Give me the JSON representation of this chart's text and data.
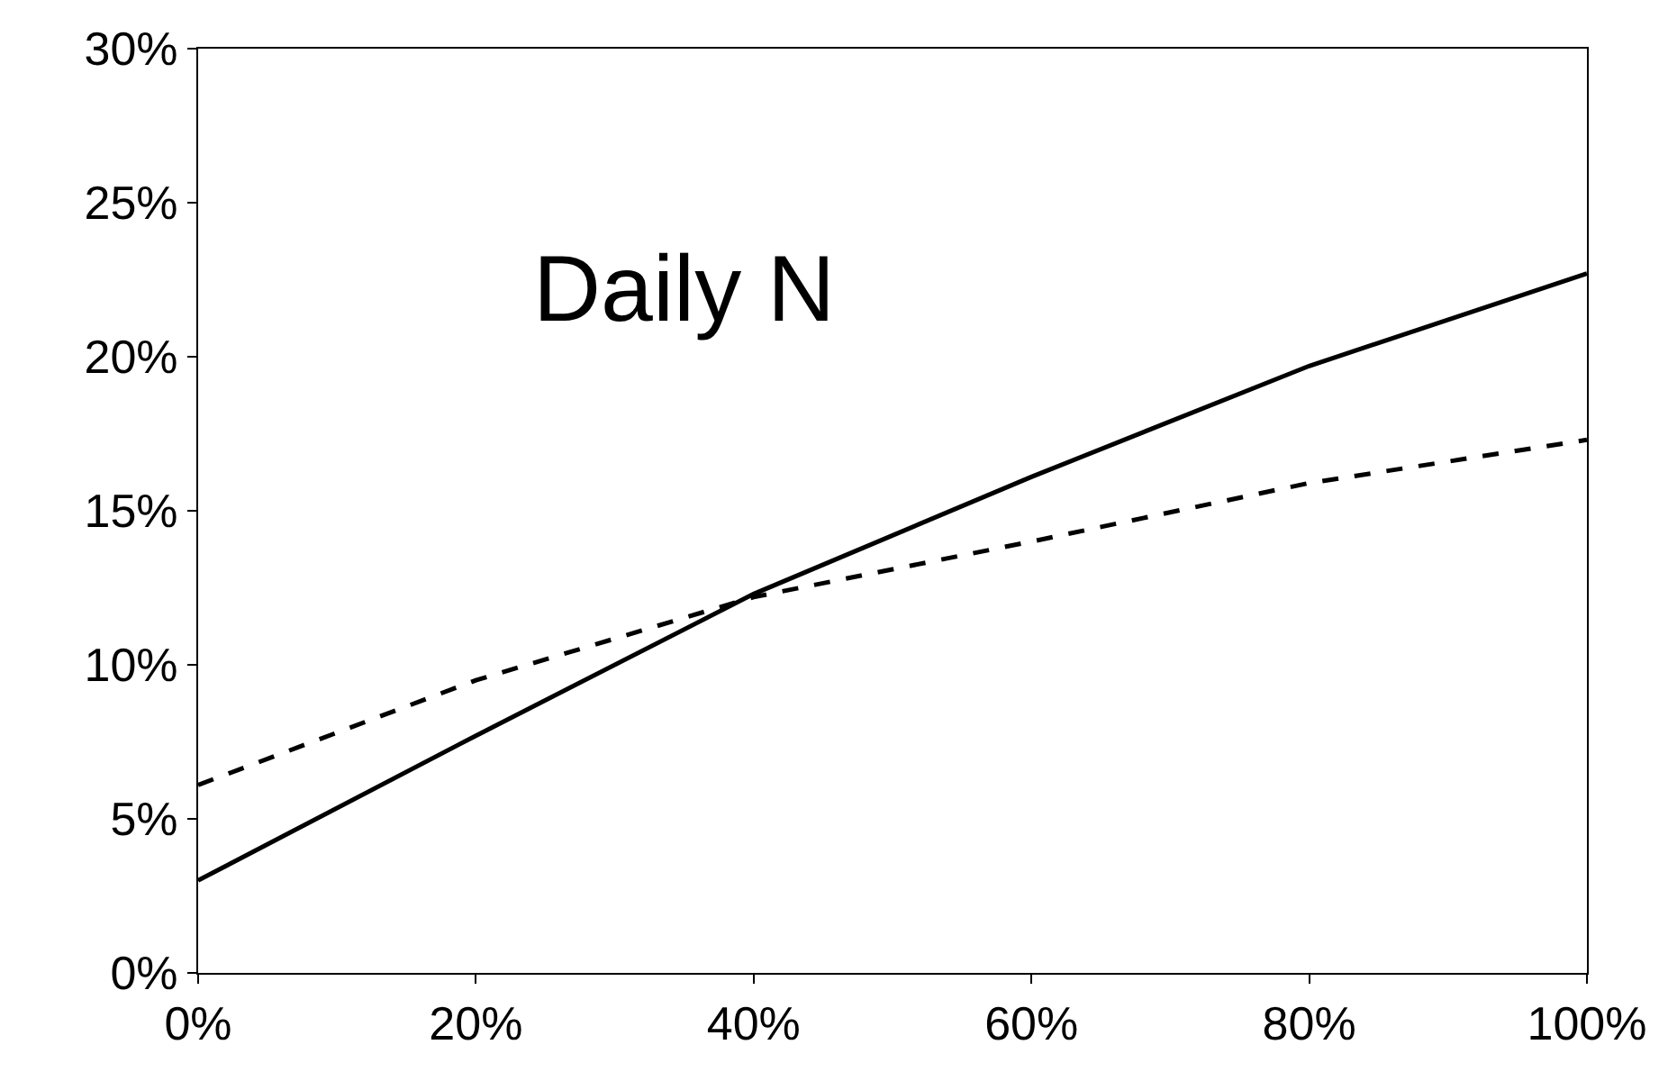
{
  "chart_data": {
    "type": "line",
    "x": [
      0,
      20,
      40,
      60,
      80,
      100
    ],
    "series": [
      {
        "color": "#000000",
        "line_style": "solid",
        "values": [
          3.0,
          7.7,
          12.3,
          16.1,
          19.7,
          22.7
        ]
      },
      {
        "color": "#000000",
        "line_style": "dashed",
        "values": [
          6.1,
          9.5,
          12.2,
          14.0,
          15.9,
          17.3
        ]
      }
    ],
    "xlim": [
      0,
      100
    ],
    "xticks": [
      {
        "value": 0,
        "label": "0%"
      },
      {
        "value": 20,
        "label": "20%"
      },
      {
        "value": 40,
        "label": "40%"
      },
      {
        "value": 60,
        "label": "60%"
      },
      {
        "value": 80,
        "label": "80%"
      },
      {
        "value": 100,
        "label": "100%"
      }
    ],
    "ylim": [
      0,
      30
    ],
    "yticks": [
      {
        "value": 0,
        "label": "0%"
      },
      {
        "value": 5,
        "label": "5%"
      },
      {
        "value": 10,
        "label": "10%"
      },
      {
        "value": 15,
        "label": "15%"
      },
      {
        "value": 20,
        "label": "20%"
      },
      {
        "value": 25,
        "label": "25%"
      },
      {
        "value": 30,
        "label": "30%"
      }
    ],
    "annotations": [
      "Daily N"
    ],
    "grid": false,
    "marker": "none"
  }
}
